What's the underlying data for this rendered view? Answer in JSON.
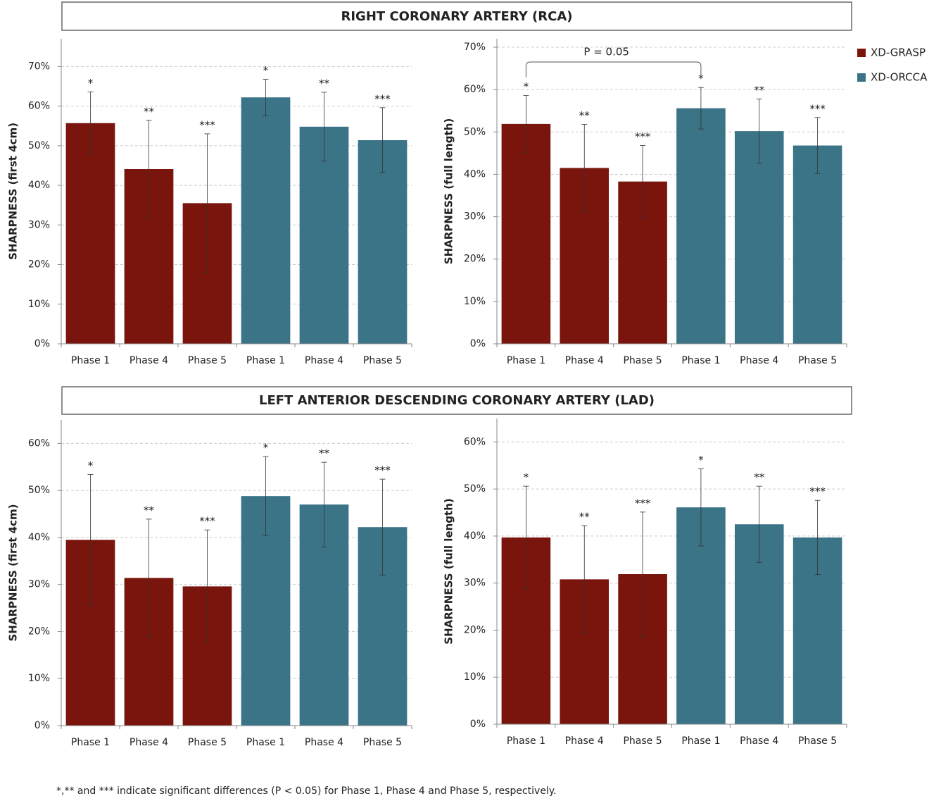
{
  "headers": [
    "RIGHT CORONARY ARTERY (RCA)",
    "LEFT ANTERIOR DESCENDING CORONARY ARTERY (LAD)"
  ],
  "legend": [
    {
      "name": "XD-GRASP",
      "color": "#7a150e"
    },
    {
      "name": "XD-ORCCA",
      "color": "#3b7387"
    }
  ],
  "footnote": "*,** and *** indicate significant differences (P < 0.05) for Phase 1, Phase 4 and Phase 5, respectively.",
  "chart_data": [
    {
      "type": "bar",
      "ylabel": "SHARPNESS (first 4cm)",
      "categories": [
        "Phase 1",
        "Phase 4",
        "Phase 5"
      ],
      "annotations": [
        "*",
        "**",
        "***"
      ],
      "series": [
        {
          "values": [
            55.7,
            44.1,
            35.5
          ],
          "errors": [
            7.9,
            12.3,
            17.5
          ]
        },
        {
          "values": [
            62.2,
            54.8,
            51.4
          ],
          "errors": [
            4.6,
            8.7,
            8.2
          ]
        }
      ],
      "ylim": [
        0,
        77
      ],
      "grid": true,
      "yticks": [
        {
          "value": 0,
          "label": "0%"
        },
        {
          "value": 10,
          "label": "10%"
        },
        {
          "value": 20,
          "label": "20%"
        },
        {
          "value": 30,
          "label": "30%"
        },
        {
          "value": 40,
          "label": "40%"
        },
        {
          "value": 50,
          "label": "50%"
        },
        {
          "value": 60,
          "label": "60%"
        },
        {
          "value": 70,
          "label": "70%"
        }
      ]
    },
    {
      "type": "bar",
      "ylabel": "SHARPNESS (full length)",
      "categories": [
        "Phase 1",
        "Phase 4",
        "Phase 5"
      ],
      "annotations": [
        "*",
        "**",
        "***"
      ],
      "bracket_label": "P = 0.05",
      "series": [
        {
          "values": [
            51.9,
            41.5,
            38.3
          ],
          "errors": [
            6.7,
            10.3,
            8.5
          ]
        },
        {
          "values": [
            55.6,
            50.2,
            46.8
          ],
          "errors": [
            4.9,
            7.6,
            6.6
          ]
        }
      ],
      "ylim": [
        0,
        72
      ],
      "grid": true,
      "yticks": [
        {
          "value": 0,
          "label": "0%"
        },
        {
          "value": 10,
          "label": "10%"
        },
        {
          "value": 20,
          "label": "20%"
        },
        {
          "value": 30,
          "label": "30%"
        },
        {
          "value": 40,
          "label": "40%"
        },
        {
          "value": 50,
          "label": "50%"
        },
        {
          "value": 60,
          "label": "60%"
        },
        {
          "value": 70,
          "label": "70%"
        }
      ]
    },
    {
      "type": "bar",
      "ylabel": "SHARPNESS (first 4cm)",
      "categories": [
        "Phase 1",
        "Phase 4",
        "Phase 5"
      ],
      "annotations": [
        "*",
        "**",
        "***"
      ],
      "series": [
        {
          "values": [
            39.5,
            31.4,
            29.6
          ],
          "errors": [
            13.9,
            12.5,
            12.0
          ]
        },
        {
          "values": [
            48.8,
            47.0,
            42.2
          ],
          "errors": [
            8.4,
            9.0,
            10.2
          ]
        }
      ],
      "ylim": [
        0,
        65
      ],
      "grid": true,
      "yticks": [
        {
          "value": 0,
          "label": "0%"
        },
        {
          "value": 10,
          "label": "10%"
        },
        {
          "value": 20,
          "label": "20%"
        },
        {
          "value": 30,
          "label": "30%"
        },
        {
          "value": 40,
          "label": "40%"
        },
        {
          "value": 50,
          "label": "50%"
        },
        {
          "value": 60,
          "label": "60%"
        }
      ]
    },
    {
      "type": "bar",
      "ylabel": "SHARPNESS (full length)",
      "categories": [
        "Phase 1",
        "Phase 4",
        "Phase 5"
      ],
      "annotations": [
        "*",
        "**",
        "***"
      ],
      "series": [
        {
          "values": [
            39.7,
            30.8,
            31.9
          ],
          "errors": [
            10.9,
            11.4,
            13.2
          ]
        },
        {
          "values": [
            46.1,
            42.5,
            39.7
          ],
          "errors": [
            8.2,
            8.1,
            7.9
          ]
        }
      ],
      "ylim": [
        0,
        65
      ],
      "grid": true,
      "yticks": [
        {
          "value": 0,
          "label": "0%"
        },
        {
          "value": 10,
          "label": "10%"
        },
        {
          "value": 20,
          "label": "20%"
        },
        {
          "value": 30,
          "label": "30%"
        },
        {
          "value": 40,
          "label": "40%"
        },
        {
          "value": 50,
          "label": "50%"
        },
        {
          "value": 60,
          "label": "60%"
        }
      ]
    }
  ]
}
